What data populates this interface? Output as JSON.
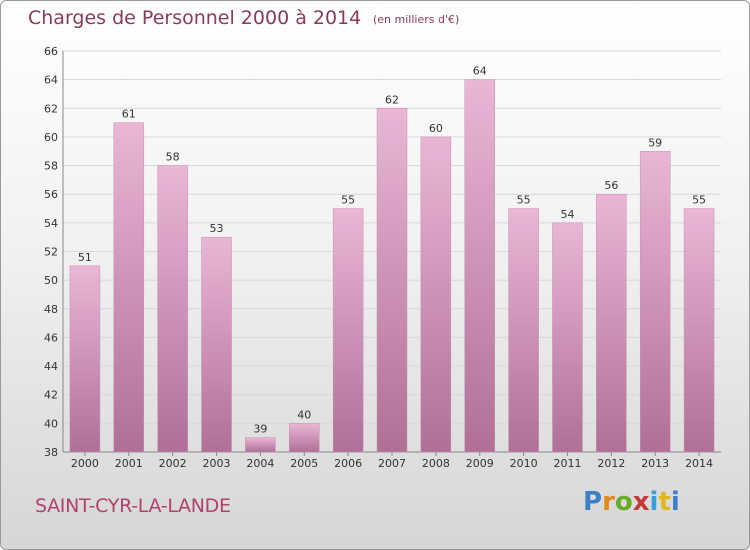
{
  "header": {
    "title": "Charges de Personnel 2000 à 2014",
    "unit": "(en milliers d'€)"
  },
  "footer": {
    "place": "SAINT-CYR-LA-LANDE",
    "logo": "Proxiti"
  },
  "colors": {
    "bar_light": "#eab6d6",
    "bar_dark": "#b07096",
    "title": "#8b3a5c",
    "place": "#b0426d"
  },
  "chart_data": {
    "type": "bar",
    "categories": [
      "2000",
      "2001",
      "2002",
      "2003",
      "2004",
      "2005",
      "2006",
      "2007",
      "2008",
      "2009",
      "2010",
      "2011",
      "2012",
      "2013",
      "2014"
    ],
    "values": [
      51,
      61,
      58,
      53,
      39,
      40,
      55,
      62,
      60,
      64,
      55,
      54,
      56,
      59,
      55
    ],
    "title": "Charges de Personnel 2000 à 2014",
    "subtitle": "(en milliers d'€)",
    "ylim": [
      38,
      66
    ],
    "yticks": [
      38,
      40,
      42,
      44,
      46,
      48,
      50,
      52,
      54,
      56,
      58,
      60,
      62,
      64,
      66
    ],
    "grid": true,
    "data_labels": true
  }
}
